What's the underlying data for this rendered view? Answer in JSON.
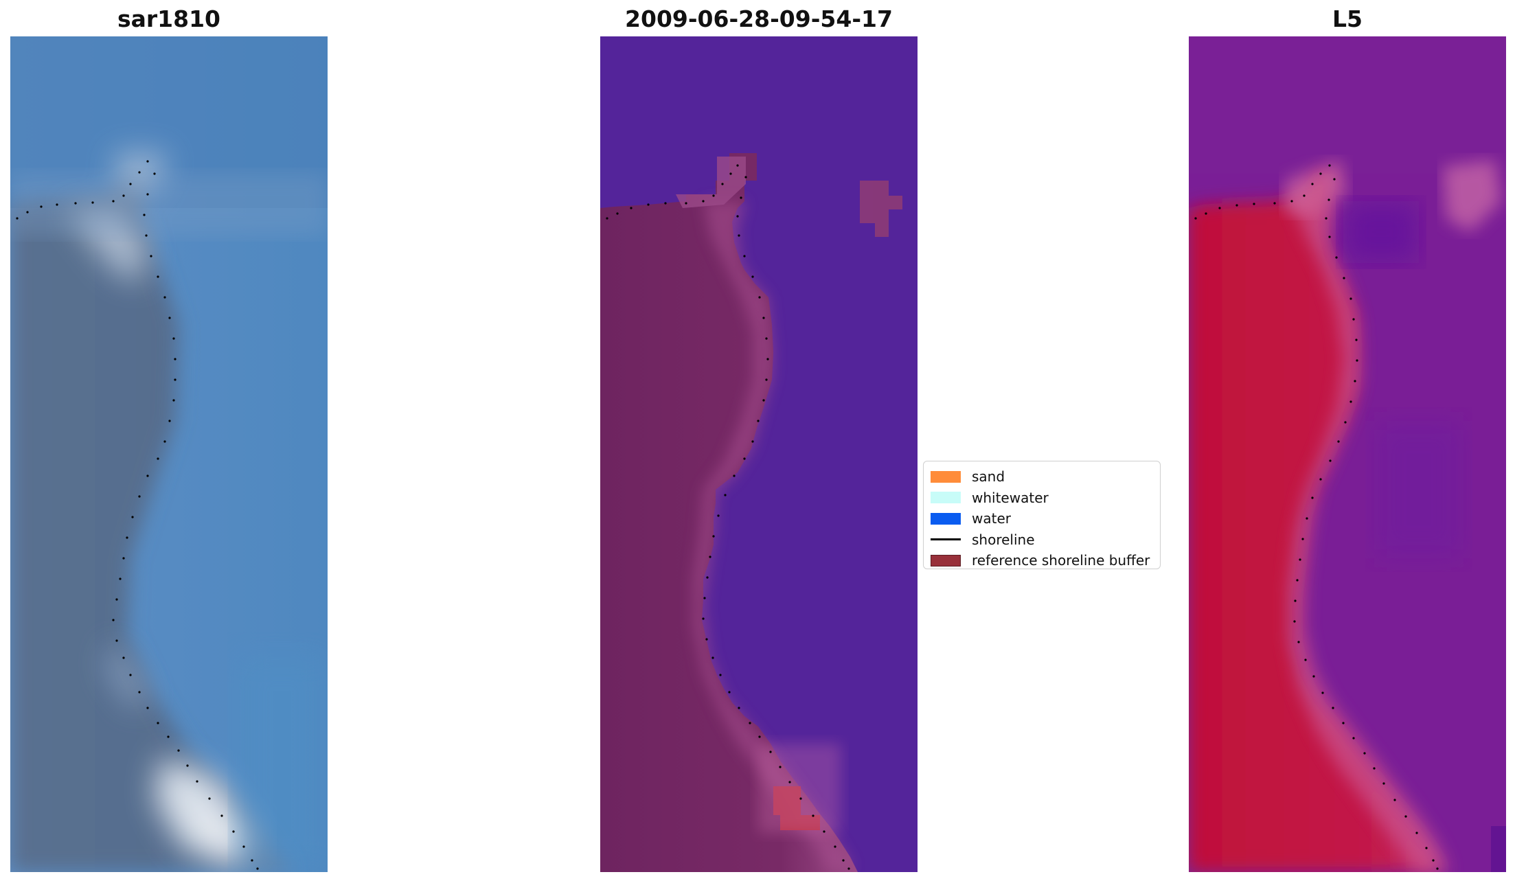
{
  "panels": [
    {
      "title": "sar1810"
    },
    {
      "title": "2009-06-28-09-54-17"
    },
    {
      "title": "L5"
    }
  ],
  "legend": {
    "items": [
      {
        "label": "sand",
        "color": "#ff8c3a",
        "kind": "patch"
      },
      {
        "label": "whitewater",
        "color": "#c8fcf8",
        "kind": "patch"
      },
      {
        "label": "water",
        "color": "#0a5cf0",
        "kind": "patch"
      },
      {
        "label": "shoreline",
        "color": "#000000",
        "kind": "line"
      },
      {
        "label": "reference shoreline buffer",
        "color": "#98303a",
        "kind": "patch"
      }
    ]
  }
}
